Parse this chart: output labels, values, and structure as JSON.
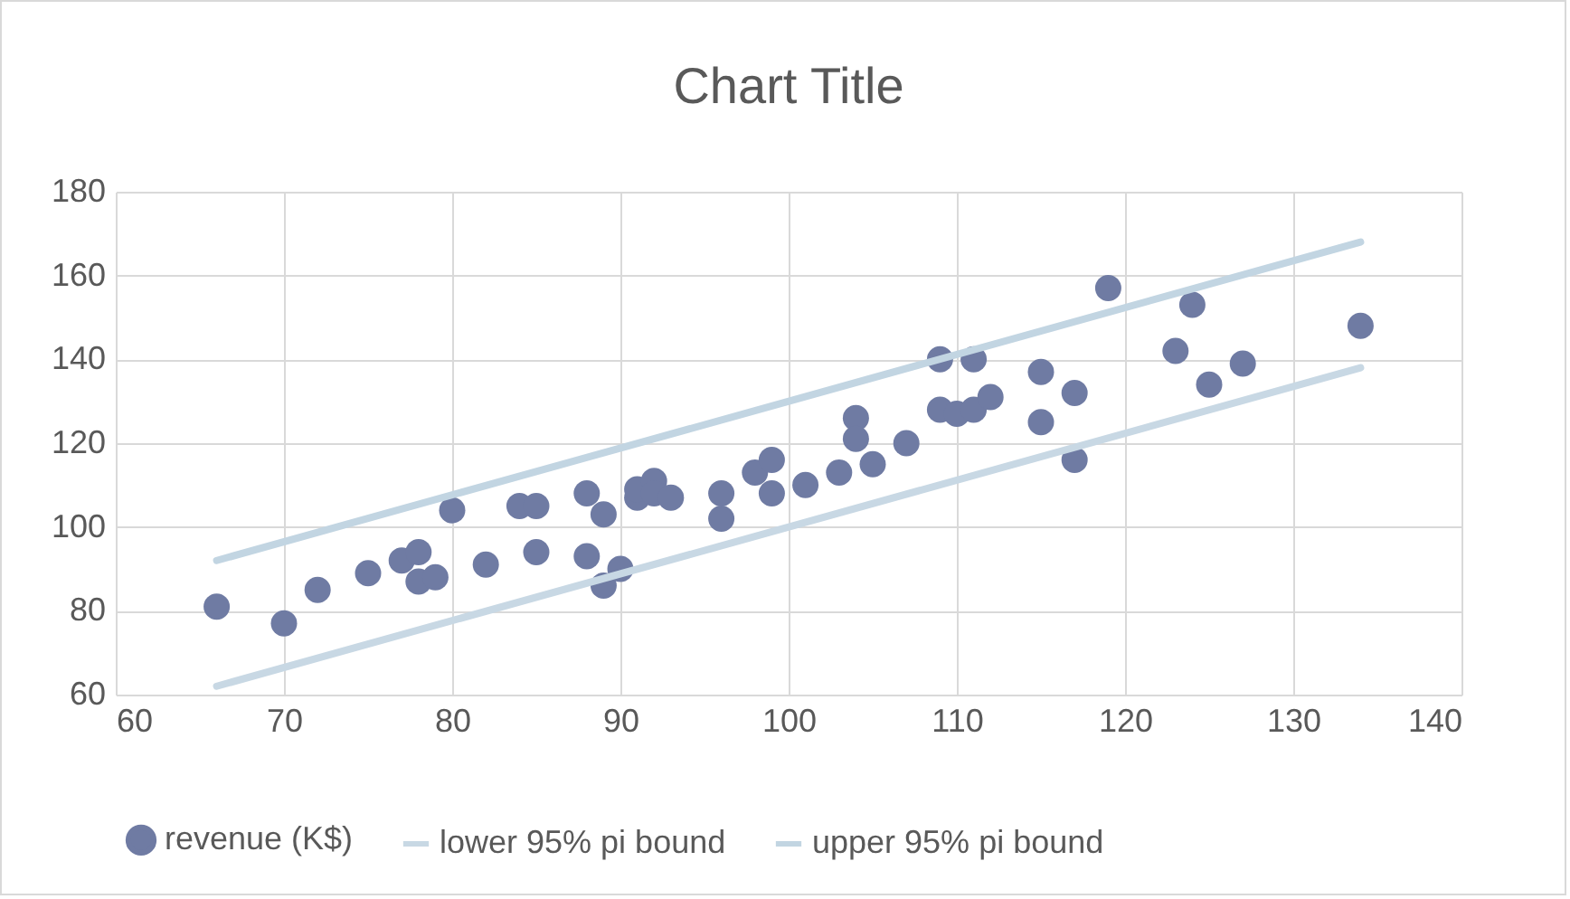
{
  "chart_data": {
    "type": "scatter",
    "title": "Chart Title",
    "grid": true,
    "legend": "bottom",
    "xlim": [
      60,
      140
    ],
    "xticks": [
      60,
      70,
      80,
      90,
      100,
      110,
      120,
      130,
      140
    ],
    "ylim": [
      60,
      180
    ],
    "yticks": [
      60,
      80,
      100,
      120,
      140,
      160,
      180
    ],
    "series": [
      {
        "name": "revenue (K$)",
        "marker": "circle",
        "color": "#6f7ba3",
        "x": [
          66,
          70,
          72,
          75,
          77,
          78,
          78,
          79,
          80,
          82,
          84,
          85,
          85,
          88,
          88,
          89,
          89,
          90,
          91,
          91,
          92,
          92,
          93,
          96,
          96,
          98,
          99,
          99,
          101,
          103,
          104,
          104,
          105,
          107,
          109,
          109,
          110,
          111,
          111,
          112,
          115,
          115,
          117,
          117,
          119,
          123,
          124,
          125,
          127,
          134
        ],
        "values": [
          81,
          77,
          85,
          89,
          92,
          94,
          87,
          88,
          104,
          91,
          105,
          105,
          94,
          108,
          93,
          86,
          103,
          90,
          107,
          109,
          111,
          108,
          107,
          108,
          102,
          113,
          116,
          108,
          110,
          113,
          126,
          121,
          115,
          120,
          140,
          128,
          127,
          140,
          128,
          131,
          137,
          125,
          132,
          116,
          157,
          142,
          153,
          134,
          139,
          148
        ]
      },
      {
        "name": "lower 95% pi bound",
        "type": "line",
        "line_style": "solid",
        "color": "#c8d8e4",
        "x": [
          66,
          134
        ],
        "values": [
          62,
          138
        ]
      },
      {
        "name": "upper 95% pi bound",
        "type": "line",
        "line_style": "solid",
        "color": "#c2d5e2",
        "x": [
          66,
          134
        ],
        "values": [
          92,
          168
        ]
      }
    ]
  }
}
